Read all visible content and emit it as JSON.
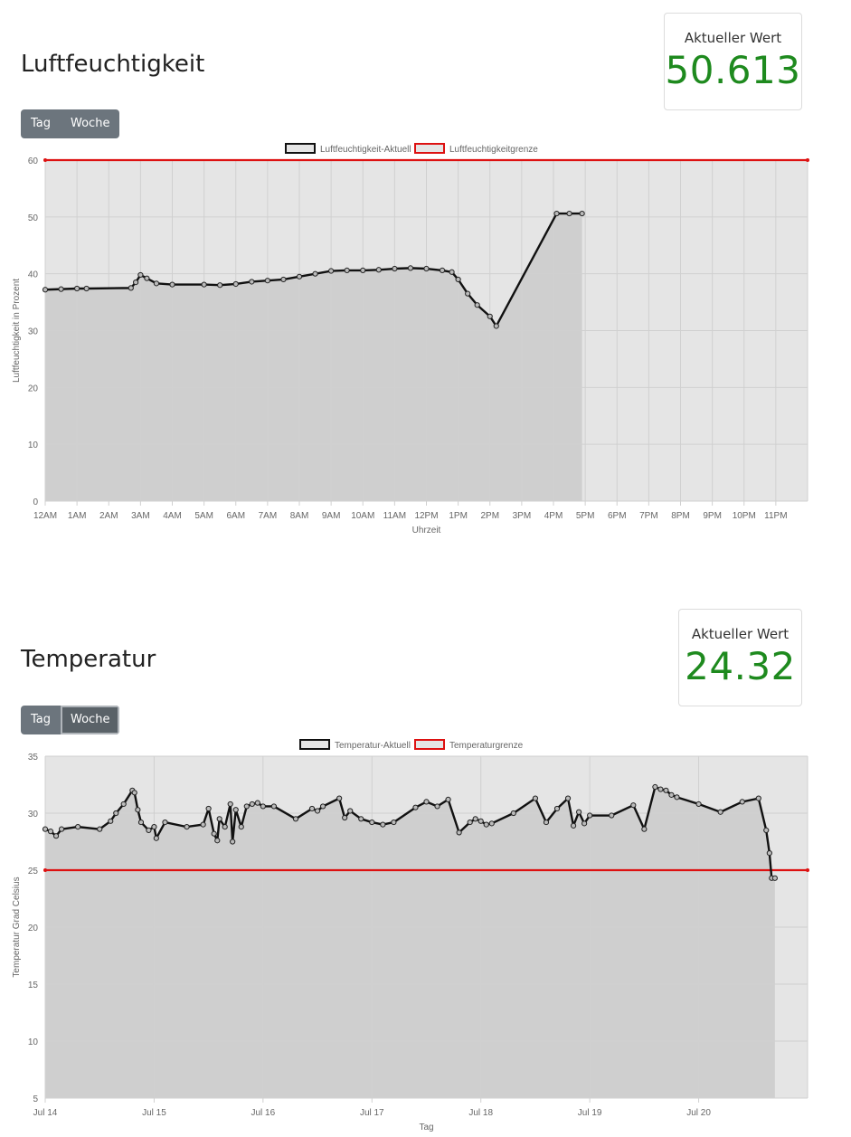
{
  "humidity": {
    "title": "Luftfeuchtigkeit",
    "card": {
      "label": "Aktueller Wert",
      "value": "50.613"
    },
    "buttons": [
      "Tag",
      "Woche"
    ],
    "chart_data": {
      "type": "line",
      "legend": [
        "Luftfeuchtigkeit-Aktuell",
        "Luftfeuchtigkeitgrenze"
      ],
      "legend_position": "top-center",
      "xlabel": "Uhrzeit",
      "ylabel": "Luftfeuchtigkeit in Prozent",
      "x_ticks": [
        "12AM",
        "1AM",
        "2AM",
        "3AM",
        "4AM",
        "5AM",
        "6AM",
        "7AM",
        "8AM",
        "9AM",
        "10AM",
        "11AM",
        "12PM",
        "1PM",
        "2PM",
        "3PM",
        "4PM",
        "5PM",
        "6PM",
        "7PM",
        "8PM",
        "9PM",
        "10PM",
        "11PM"
      ],
      "xlim": [
        0,
        24
      ],
      "ylim": [
        0,
        60
      ],
      "y_ticks": [
        0,
        10,
        20,
        30,
        40,
        50,
        60
      ],
      "grid": true,
      "threshold": 60,
      "series": [
        {
          "name": "Luftfeuchtigkeit-Aktuell",
          "x": [
            0,
            0.5,
            1,
            1.3,
            2.7,
            2.85,
            3,
            3.2,
            3.5,
            4,
            5,
            5.5,
            6,
            6.5,
            7,
            7.5,
            8,
            8.5,
            9,
            9.5,
            10,
            10.5,
            11,
            11.5,
            12,
            12.5,
            12.8,
            13,
            13.3,
            13.6,
            14,
            14.2,
            16.1,
            16.5,
            16.9
          ],
          "y": [
            37.2,
            37.3,
            37.4,
            37.4,
            37.5,
            38.5,
            39.8,
            39.2,
            38.3,
            38.1,
            38.1,
            38.0,
            38.2,
            38.6,
            38.8,
            39.0,
            39.5,
            40.0,
            40.5,
            40.6,
            40.6,
            40.7,
            40.9,
            41.0,
            40.9,
            40.6,
            40.3,
            39.0,
            36.5,
            34.5,
            32.5,
            30.8,
            50.6,
            50.6,
            50.6
          ]
        },
        {
          "name": "Luftfeuchtigkeitgrenze",
          "x": [
            0,
            24
          ],
          "y": [
            60,
            60
          ]
        }
      ]
    }
  },
  "temperature": {
    "title": "Temperatur",
    "card": {
      "label": "Aktueller Wert",
      "value": "24.32"
    },
    "buttons": [
      "Tag",
      "Woche"
    ],
    "chart_data": {
      "type": "line",
      "legend": [
        "Temperatur-Aktuell",
        "Temperaturgrenze"
      ],
      "legend_position": "top-center",
      "xlabel": "Tag",
      "ylabel": "Temperatur Grad Celsius",
      "x_ticks": [
        "Jul 14",
        "Jul 15",
        "Jul 16",
        "Jul 17",
        "Jul 18",
        "Jul 19",
        "Jul 20"
      ],
      "xlim": [
        0,
        7
      ],
      "ylim": [
        5,
        35
      ],
      "y_ticks": [
        5,
        10,
        15,
        20,
        25,
        30,
        35
      ],
      "grid": true,
      "threshold": 25,
      "series": [
        {
          "name": "Temperatur-Aktuell",
          "x": [
            0,
            0.05,
            0.1,
            0.15,
            0.3,
            0.5,
            0.6,
            0.65,
            0.72,
            0.8,
            0.82,
            0.85,
            0.88,
            0.95,
            1.0,
            1.02,
            1.1,
            1.3,
            1.45,
            1.5,
            1.55,
            1.58,
            1.6,
            1.65,
            1.7,
            1.72,
            1.75,
            1.8,
            1.85,
            1.9,
            1.95,
            2.0,
            2.1,
            2.3,
            2.45,
            2.5,
            2.55,
            2.7,
            2.75,
            2.8,
            2.9,
            3.0,
            3.1,
            3.2,
            3.4,
            3.5,
            3.6,
            3.7,
            3.8,
            3.9,
            3.95,
            4.0,
            4.05,
            4.1,
            4.3,
            4.5,
            4.6,
            4.7,
            4.8,
            4.85,
            4.9,
            4.95,
            5.0,
            5.2,
            5.4,
            5.5,
            5.6,
            5.65,
            5.7,
            5.75,
            5.8,
            6.0,
            6.2,
            6.4,
            6.55,
            6.62,
            6.65,
            6.67,
            6.7
          ],
          "y": [
            28.6,
            28.4,
            28.0,
            28.6,
            28.8,
            28.6,
            29.3,
            30.0,
            30.8,
            32.0,
            31.8,
            30.3,
            29.2,
            28.5,
            28.8,
            27.8,
            29.2,
            28.8,
            29.0,
            30.4,
            28.2,
            27.6,
            29.5,
            28.8,
            30.8,
            27.5,
            30.3,
            28.8,
            30.6,
            30.8,
            30.9,
            30.6,
            30.6,
            29.5,
            30.4,
            30.2,
            30.6,
            31.3,
            29.6,
            30.2,
            29.5,
            29.2,
            29.0,
            29.2,
            30.5,
            31.0,
            30.6,
            31.2,
            28.3,
            29.2,
            29.5,
            29.3,
            29.0,
            29.1,
            30.0,
            31.3,
            29.2,
            30.4,
            31.3,
            28.9,
            30.1,
            29.1,
            29.8,
            29.8,
            30.7,
            28.6,
            32.3,
            32.1,
            32.0,
            31.6,
            31.4,
            30.8,
            30.1,
            31.0,
            31.3,
            28.5,
            26.5,
            24.3,
            24.3
          ]
        },
        {
          "name": "Temperaturgrenze",
          "x": [
            0,
            7
          ],
          "y": [
            25,
            25
          ]
        }
      ]
    }
  }
}
